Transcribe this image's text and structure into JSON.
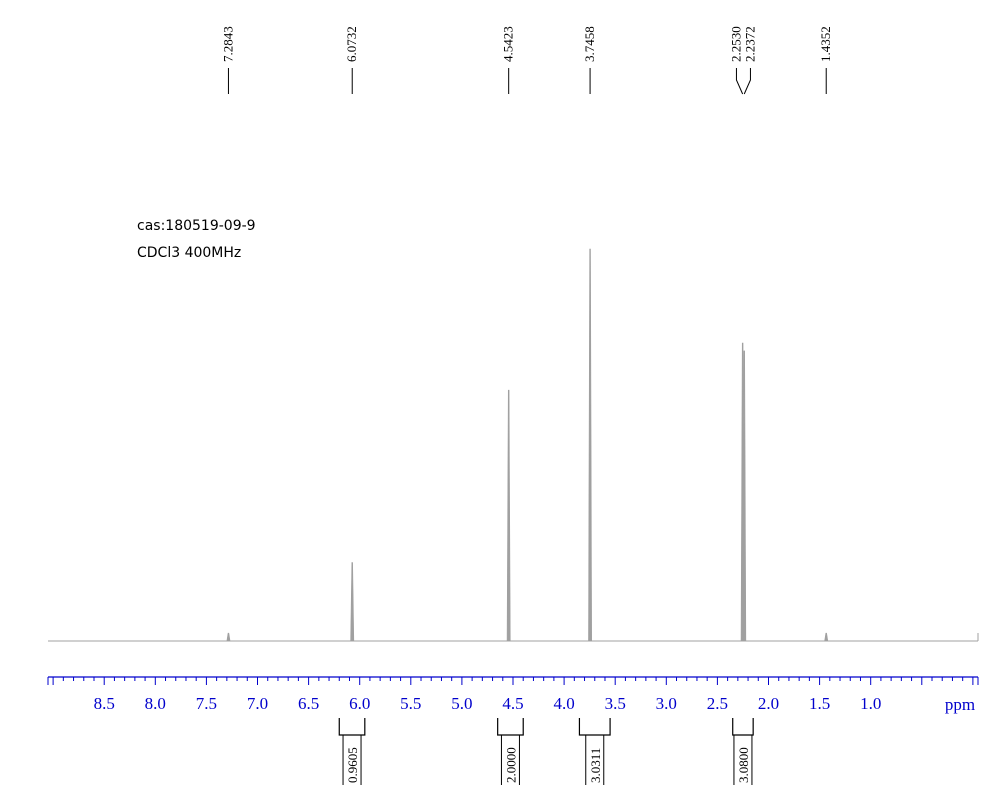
{
  "sample": {
    "cas": "cas:180519-09-9",
    "conditions": "CDCl3 400MHz"
  },
  "chart_data": {
    "type": "line",
    "title": "",
    "xlabel": "ppm",
    "ylabel": "",
    "x_reversed": true,
    "xlim": [
      9.05,
      -0.05
    ],
    "ylim": [
      0,
      1
    ],
    "x_ticks": [
      "8.5",
      "8.0",
      "7.5",
      "7.0",
      "6.5",
      "6.0",
      "5.5",
      "5.0",
      "4.5",
      "4.0",
      "3.5",
      "3.0",
      "2.5",
      "2.0",
      "1.5",
      "1.0"
    ],
    "peaks": [
      {
        "shift": 7.2843,
        "height": 0.02
      },
      {
        "shift": 6.0732,
        "height": 0.2
      },
      {
        "shift": 4.5423,
        "height": 0.64
      },
      {
        "shift": 3.7458,
        "height": 1.0
      },
      {
        "shift": 2.253,
        "height": 0.76
      },
      {
        "shift": 2.2372,
        "height": 0.74
      },
      {
        "shift": 1.4352,
        "height": 0.02
      }
    ],
    "peak_labels": [
      "7.2843",
      "6.0732",
      "4.5423",
      "3.7458",
      "2.2530",
      "2.2372",
      "1.4352"
    ],
    "integrals": [
      {
        "label": "0.9605",
        "from": 6.2,
        "to": 5.95
      },
      {
        "label": "2.0000",
        "from": 4.65,
        "to": 4.4
      },
      {
        "label": "3.0311",
        "from": 3.85,
        "to": 3.55
      },
      {
        "label": "3.0800",
        "from": 2.35,
        "to": 2.15
      }
    ],
    "colors": {
      "spectrum": "#a0a0a0",
      "axis": "#0000cc",
      "labels": "#000000"
    }
  }
}
